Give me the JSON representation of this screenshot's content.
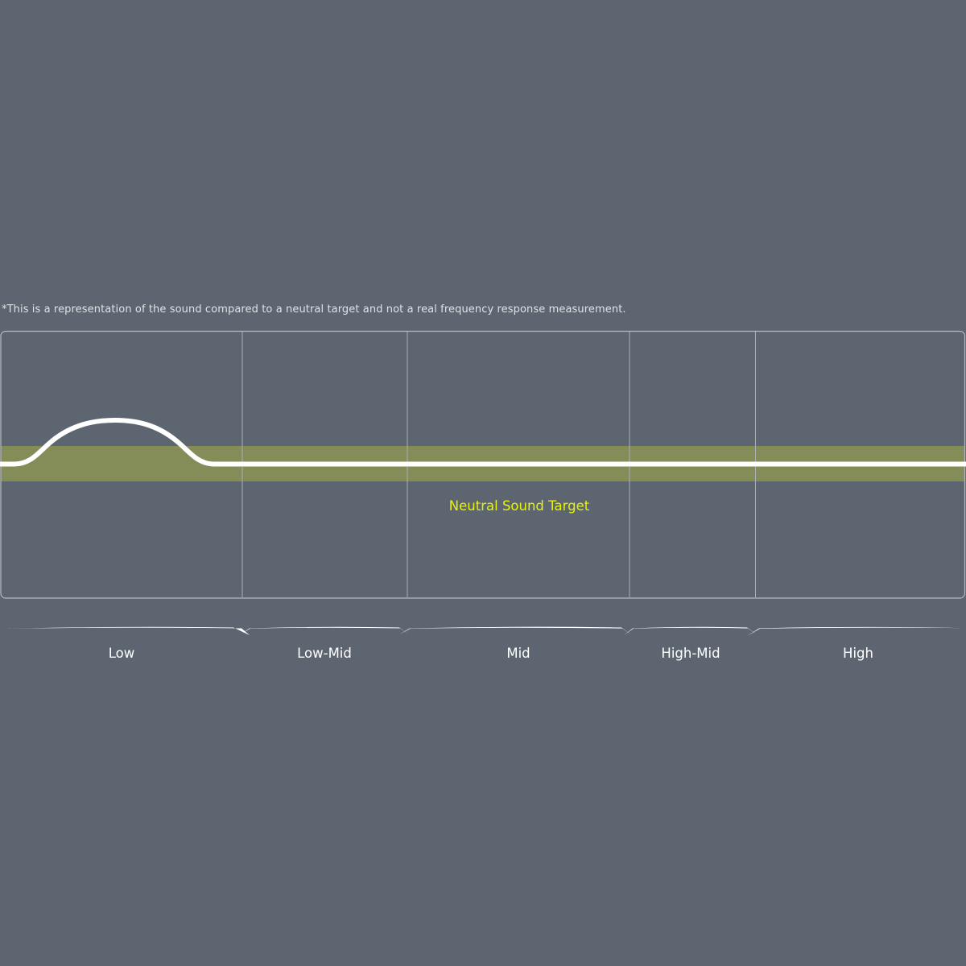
{
  "disclaimer": "*This is a representation of the sound compared to a neutral target and not a real frequency response measurement.",
  "target_label": "Neutral Sound Target",
  "bands": [
    "Low",
    "Low-Mid",
    "Mid",
    "High-Mid",
    "High"
  ],
  "colors": {
    "background": "#5d6670",
    "target_band": "#848c58",
    "curve": "#ffffff",
    "target_label": "#e6f20e",
    "frame": "#b7bcc2"
  },
  "curve": {
    "description_bands": [
      "Low"
    ],
    "bump_band": "Low"
  }
}
